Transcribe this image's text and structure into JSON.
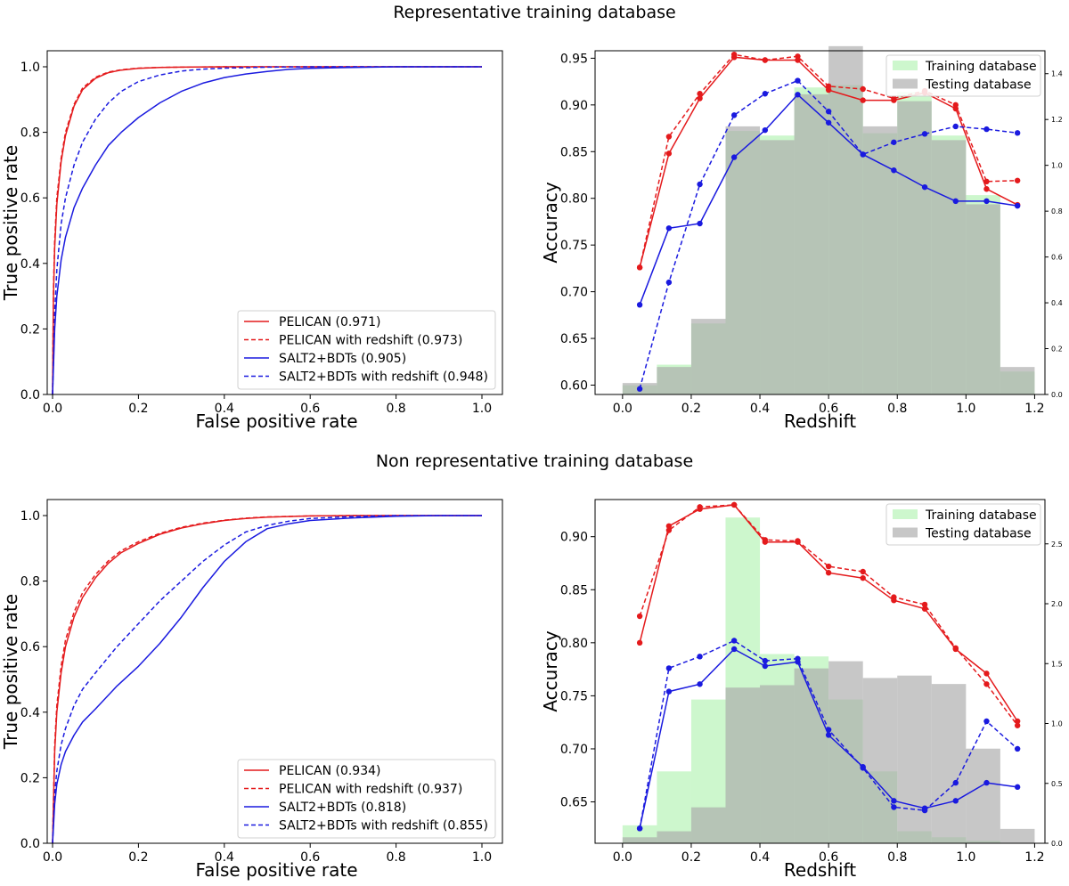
{
  "figure": {
    "top_title": "Representative training database",
    "bottom_title": "Non representative training database"
  },
  "chart_data": [
    {
      "id": "roc_rep",
      "type": "line",
      "title": "",
      "xlabel": "False positive rate",
      "ylabel": "True positive rate",
      "xlim": [
        0.0,
        1.0
      ],
      "ylim": [
        0.0,
        1.0
      ],
      "xticks": [
        0.0,
        0.2,
        0.4,
        0.6,
        0.8,
        1.0
      ],
      "yticks": [
        0.0,
        0.2,
        0.4,
        0.6,
        0.8,
        1.0
      ],
      "legend_position": "lower-right",
      "series": [
        {
          "name": "PELICAN  (0.971)",
          "color": "#e41a1c",
          "dash": "solid",
          "x": [
            0,
            0.002,
            0.005,
            0.01,
            0.02,
            0.03,
            0.05,
            0.07,
            0.1,
            0.13,
            0.16,
            0.2,
            0.25,
            0.3,
            0.4,
            0.5,
            0.6,
            0.8,
            1.0
          ],
          "y": [
            0,
            0.3,
            0.45,
            0.58,
            0.71,
            0.79,
            0.88,
            0.93,
            0.965,
            0.982,
            0.99,
            0.995,
            0.998,
            0.999,
            1.0,
            1.0,
            1.0,
            1.0,
            1.0
          ]
        },
        {
          "name": "PELICAN with redshift (0.973)",
          "color": "#e41a1c",
          "dash": "dashed",
          "x": [
            0,
            0.002,
            0.005,
            0.01,
            0.02,
            0.03,
            0.05,
            0.07,
            0.1,
            0.13,
            0.16,
            0.2,
            0.25,
            0.3,
            0.4,
            0.5,
            0.6,
            0.8,
            1.0
          ],
          "y": [
            0,
            0.32,
            0.47,
            0.6,
            0.72,
            0.8,
            0.885,
            0.935,
            0.968,
            0.984,
            0.991,
            0.996,
            0.998,
            0.999,
            1.0,
            1.0,
            1.0,
            1.0,
            1.0
          ]
        },
        {
          "name": "SALT2+BDTs (0.905)",
          "color": "#1a1adf",
          "dash": "solid",
          "x": [
            0,
            0.005,
            0.01,
            0.02,
            0.03,
            0.05,
            0.07,
            0.1,
            0.13,
            0.16,
            0.2,
            0.25,
            0.3,
            0.35,
            0.4,
            0.45,
            0.5,
            0.55,
            0.6,
            0.7,
            0.8,
            0.9,
            1.0
          ],
          "y": [
            0,
            0.2,
            0.3,
            0.41,
            0.48,
            0.57,
            0.63,
            0.7,
            0.76,
            0.8,
            0.845,
            0.89,
            0.925,
            0.95,
            0.967,
            0.978,
            0.986,
            0.992,
            0.995,
            0.998,
            1.0,
            1.0,
            1.0
          ]
        },
        {
          "name": "SALT2+BDTs with redshift (0.948)",
          "color": "#1a1adf",
          "dash": "dashed",
          "x": [
            0,
            0.005,
            0.01,
            0.02,
            0.03,
            0.05,
            0.07,
            0.1,
            0.13,
            0.16,
            0.2,
            0.25,
            0.3,
            0.35,
            0.4,
            0.5,
            0.6,
            0.8,
            1.0
          ],
          "y": [
            0,
            0.25,
            0.38,
            0.52,
            0.6,
            0.7,
            0.77,
            0.84,
            0.89,
            0.925,
            0.955,
            0.975,
            0.987,
            0.993,
            0.996,
            0.999,
            1.0,
            1.0,
            1.0
          ]
        }
      ]
    },
    {
      "id": "acc_rep",
      "type": "line",
      "title": "",
      "xlabel": "Redshift",
      "ylabel": "Accuracy",
      "xlim": [
        -0.08,
        1.23
      ],
      "ylim": [
        0.59,
        0.958
      ],
      "ylim_right": [
        0.0,
        1.5
      ],
      "xticks": [
        0.0,
        0.2,
        0.4,
        0.6,
        0.8,
        1.0,
        1.2
      ],
      "yticks": [
        0.6,
        0.65,
        0.7,
        0.75,
        0.8,
        0.85,
        0.9,
        0.95
      ],
      "yticks_right": [
        0.0,
        0.2,
        0.4,
        0.6,
        0.8,
        1.0,
        1.2,
        1.4
      ],
      "legend_position": "upper-right",
      "histograms": {
        "bin_edges": [
          0.0,
          0.1,
          0.2,
          0.3,
          0.4,
          0.5,
          0.6,
          0.7,
          0.8,
          0.9,
          1.0,
          1.1,
          1.2
        ],
        "training": {
          "name": "Training database",
          "color": "#90ee90",
          "values": [
            0.04,
            0.13,
            0.31,
            1.15,
            1.13,
            1.34,
            1.35,
            1.14,
            1.32,
            1.13,
            0.87,
            0.1
          ]
        },
        "testing": {
          "name": "Testing database",
          "color": "#a9a9a9",
          "values": [
            0.05,
            0.12,
            0.33,
            1.17,
            1.11,
            1.31,
            1.52,
            1.17,
            1.28,
            1.11,
            0.83,
            0.12
          ]
        }
      },
      "series": [
        {
          "name": "PELICAN",
          "color": "#e41a1c",
          "dash": "solid",
          "x": [
            0.05,
            0.135,
            0.225,
            0.325,
            0.415,
            0.51,
            0.6,
            0.7,
            0.79,
            0.88,
            0.97,
            1.06,
            1.15
          ],
          "y": [
            0.726,
            0.848,
            0.907,
            0.951,
            0.948,
            0.948,
            0.916,
            0.905,
            0.905,
            0.913,
            0.896,
            0.81,
            0.793
          ]
        },
        {
          "name": "PELICAN with redshift",
          "color": "#e41a1c",
          "dash": "dashed",
          "x": [
            0.05,
            0.135,
            0.225,
            0.325,
            0.415,
            0.51,
            0.6,
            0.7,
            0.79,
            0.88,
            0.97,
            1.06,
            1.15
          ],
          "y": [
            0.726,
            0.866,
            0.912,
            0.954,
            0.948,
            0.952,
            0.92,
            0.917,
            0.907,
            0.915,
            0.9,
            0.818,
            0.819
          ]
        },
        {
          "name": "SALT2+BDTs",
          "color": "#1a1adf",
          "dash": "solid",
          "x": [
            0.05,
            0.135,
            0.225,
            0.325,
            0.415,
            0.51,
            0.6,
            0.7,
            0.79,
            0.88,
            0.97,
            1.06,
            1.15
          ],
          "y": [
            0.686,
            0.768,
            0.773,
            0.844,
            0.873,
            0.911,
            0.881,
            0.847,
            0.83,
            0.812,
            0.797,
            0.797,
            0.792
          ]
        },
        {
          "name": "SALT2+BDTs with redshift",
          "color": "#1a1adf",
          "dash": "dashed",
          "x": [
            0.05,
            0.135,
            0.225,
            0.325,
            0.415,
            0.51,
            0.6,
            0.7,
            0.79,
            0.88,
            0.97,
            1.06,
            1.15
          ],
          "y": [
            0.596,
            0.71,
            0.815,
            0.889,
            0.912,
            0.926,
            0.893,
            0.847,
            0.86,
            0.869,
            0.877,
            0.874,
            0.87
          ]
        }
      ]
    },
    {
      "id": "roc_nonrep",
      "type": "line",
      "title": "",
      "xlabel": "False positive rate",
      "ylabel": "True positive rate",
      "xlim": [
        0.0,
        1.0
      ],
      "ylim": [
        0.0,
        1.0
      ],
      "xticks": [
        0.0,
        0.2,
        0.4,
        0.6,
        0.8,
        1.0
      ],
      "yticks": [
        0.0,
        0.2,
        0.4,
        0.6,
        0.8,
        1.0
      ],
      "legend_position": "lower-right",
      "series": [
        {
          "name": "PELICAN  (0.934)",
          "color": "#e41a1c",
          "dash": "solid",
          "x": [
            0,
            0.005,
            0.01,
            0.02,
            0.03,
            0.05,
            0.07,
            0.1,
            0.13,
            0.16,
            0.2,
            0.25,
            0.3,
            0.35,
            0.4,
            0.45,
            0.5,
            0.6,
            0.7,
            0.8,
            1.0
          ],
          "y": [
            0,
            0.28,
            0.4,
            0.52,
            0.6,
            0.69,
            0.75,
            0.81,
            0.855,
            0.887,
            0.915,
            0.943,
            0.962,
            0.975,
            0.985,
            0.991,
            0.995,
            0.999,
            1.0,
            1.0,
            1.0
          ]
        },
        {
          "name": "PELICAN with redshift (0.937)",
          "color": "#e41a1c",
          "dash": "dashed",
          "x": [
            0,
            0.005,
            0.01,
            0.02,
            0.03,
            0.05,
            0.07,
            0.1,
            0.13,
            0.16,
            0.2,
            0.25,
            0.3,
            0.35,
            0.4,
            0.45,
            0.5,
            0.6,
            0.7,
            0.8,
            1.0
          ],
          "y": [
            0,
            0.3,
            0.42,
            0.54,
            0.62,
            0.705,
            0.765,
            0.82,
            0.862,
            0.893,
            0.92,
            0.946,
            0.964,
            0.977,
            0.986,
            0.992,
            0.996,
            0.999,
            1.0,
            1.0,
            1.0
          ]
        },
        {
          "name": "SALT2+BDTs (0.818)",
          "color": "#1a1adf",
          "dash": "solid",
          "x": [
            0,
            0.005,
            0.01,
            0.02,
            0.03,
            0.05,
            0.07,
            0.1,
            0.15,
            0.2,
            0.25,
            0.3,
            0.35,
            0.4,
            0.45,
            0.5,
            0.55,
            0.6,
            0.7,
            0.8,
            0.9,
            1.0
          ],
          "y": [
            0,
            0.12,
            0.18,
            0.24,
            0.28,
            0.33,
            0.37,
            0.41,
            0.48,
            0.54,
            0.61,
            0.69,
            0.78,
            0.86,
            0.92,
            0.96,
            0.975,
            0.985,
            0.993,
            0.998,
            1.0,
            1.0
          ]
        },
        {
          "name": "SALT2+BDTs with redshift (0.855)",
          "color": "#1a1adf",
          "dash": "dashed",
          "x": [
            0,
            0.005,
            0.01,
            0.02,
            0.03,
            0.05,
            0.07,
            0.1,
            0.15,
            0.2,
            0.25,
            0.3,
            0.35,
            0.4,
            0.45,
            0.5,
            0.55,
            0.6,
            0.7,
            0.8,
            1.0
          ],
          "y": [
            0,
            0.15,
            0.22,
            0.3,
            0.35,
            0.42,
            0.47,
            0.52,
            0.6,
            0.67,
            0.74,
            0.8,
            0.86,
            0.91,
            0.95,
            0.97,
            0.983,
            0.991,
            0.997,
            1.0,
            1.0
          ]
        }
      ]
    },
    {
      "id": "acc_nonrep",
      "type": "line",
      "title": "",
      "xlabel": "Redshift",
      "ylabel": "Accuracy",
      "xlim": [
        -0.08,
        1.23
      ],
      "ylim": [
        0.611,
        0.935
      ],
      "ylim_right": [
        0.0,
        2.87
      ],
      "xticks": [
        0.0,
        0.2,
        0.4,
        0.6,
        0.8,
        1.0,
        1.2
      ],
      "yticks": [
        0.65,
        0.7,
        0.75,
        0.8,
        0.85,
        0.9
      ],
      "yticks_right": [
        0.0,
        0.5,
        1.0,
        1.5,
        2.0,
        2.5
      ],
      "legend_position": "upper-right",
      "histograms": {
        "bin_edges": [
          0.0,
          0.1,
          0.2,
          0.3,
          0.4,
          0.5,
          0.6,
          0.7,
          0.8,
          0.9,
          1.0,
          1.1,
          1.2
        ],
        "training": {
          "name": "Training database",
          "color": "#90ee90",
          "values": [
            0.15,
            0.6,
            1.2,
            2.72,
            1.58,
            1.56,
            1.2,
            0.6,
            0.1,
            0.05,
            0.02,
            0.0
          ]
        },
        "testing": {
          "name": "Testing database",
          "color": "#a9a9a9",
          "values": [
            0.05,
            0.1,
            0.3,
            1.3,
            1.32,
            1.46,
            1.52,
            1.38,
            1.4,
            1.33,
            0.79,
            0.12
          ]
        }
      },
      "series": [
        {
          "name": "PELICAN",
          "color": "#e41a1c",
          "dash": "solid",
          "x": [
            0.05,
            0.135,
            0.225,
            0.325,
            0.415,
            0.51,
            0.6,
            0.7,
            0.79,
            0.88,
            0.97,
            1.06,
            1.15
          ],
          "y": [
            0.8,
            0.91,
            0.926,
            0.93,
            0.895,
            0.895,
            0.866,
            0.861,
            0.84,
            0.832,
            0.794,
            0.771,
            0.726
          ]
        },
        {
          "name": "PELICAN with redshift",
          "color": "#e41a1c",
          "dash": "dashed",
          "x": [
            0.05,
            0.135,
            0.225,
            0.325,
            0.415,
            0.51,
            0.6,
            0.7,
            0.79,
            0.88,
            0.97,
            1.06,
            1.15
          ],
          "y": [
            0.825,
            0.906,
            0.928,
            0.93,
            0.897,
            0.896,
            0.872,
            0.867,
            0.843,
            0.836,
            0.795,
            0.761,
            0.722
          ]
        },
        {
          "name": "SALT2+BDTs",
          "color": "#1a1adf",
          "dash": "solid",
          "x": [
            0.05,
            0.135,
            0.225,
            0.325,
            0.415,
            0.51,
            0.6,
            0.7,
            0.79,
            0.88,
            0.97,
            1.06,
            1.15
          ],
          "y": [
            0.625,
            0.754,
            0.761,
            0.794,
            0.778,
            0.782,
            0.713,
            0.683,
            0.651,
            0.644,
            0.651,
            0.668,
            0.664
          ]
        },
        {
          "name": "SALT2+BDTs with redshift",
          "color": "#1a1adf",
          "dash": "dashed",
          "x": [
            0.05,
            0.135,
            0.225,
            0.325,
            0.415,
            0.51,
            0.6,
            0.7,
            0.79,
            0.88,
            0.97,
            1.06,
            1.15
          ],
          "y": [
            0.625,
            0.776,
            0.787,
            0.802,
            0.783,
            0.785,
            0.718,
            0.682,
            0.645,
            0.642,
            0.668,
            0.726,
            0.7
          ]
        }
      ]
    }
  ]
}
